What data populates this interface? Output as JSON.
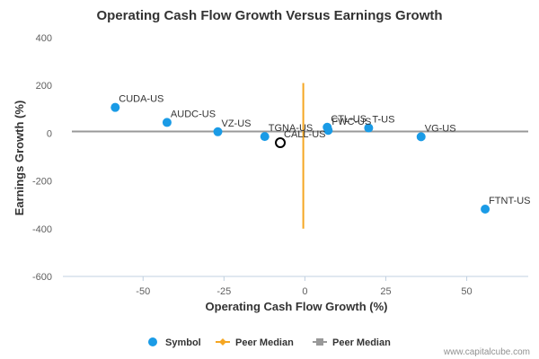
{
  "chart_data": {
    "type": "scatter",
    "title": "Operating Cash Flow Growth Versus Earnings Growth",
    "xlabel": "Operating Cash Flow Growth (%)",
    "ylabel": "Earnings Growth (%)",
    "xlim": [
      -72,
      69
    ],
    "ylim": [
      -600,
      400
    ],
    "xticks": [
      -50,
      -25,
      0,
      25,
      50
    ],
    "yticks": [
      400,
      200,
      0,
      -200,
      -400,
      -600
    ],
    "grid": false,
    "legend_position": "bottom",
    "series": [
      {
        "name": "Symbol",
        "color": "#1a9be6",
        "points": [
          {
            "label": "CUDA-US",
            "x": -58.6,
            "y": 108
          },
          {
            "label": "AUDC-US",
            "x": -42.6,
            "y": 45
          },
          {
            "label": "VZ-US",
            "x": -26.9,
            "y": 6
          },
          {
            "label": "TGNA-US",
            "x": -12.4,
            "y": -14
          },
          {
            "label": "CTL-US",
            "x": 6.9,
            "y": 25
          },
          {
            "label": "FWC-US",
            "x": 7.2,
            "y": 12
          },
          {
            "label": "T-US",
            "x": 19.7,
            "y": 22
          },
          {
            "label": "VG-US",
            "x": 35.9,
            "y": -15
          },
          {
            "label": "FTNT-US",
            "x": 55.7,
            "y": -318
          }
        ]
      },
      {
        "name": "CALL-US",
        "color": "#000000",
        "points": [
          {
            "label": "CALL-US",
            "x": -7.6,
            "y": -40
          }
        ]
      }
    ],
    "peer_median": {
      "x": -0.5,
      "y": 7,
      "x_line_range": [
        -400,
        210
      ],
      "vertical_color": "#f5a623",
      "horizontal_color": "#999999"
    },
    "legend": [
      {
        "label": "Symbol",
        "symbol": "circle",
        "color": "#1a9be6"
      },
      {
        "label": "Peer Median",
        "symbol": "diamond-line",
        "color": "#f5a623"
      },
      {
        "label": "Peer Median",
        "symbol": "square-line",
        "color": "#999999"
      }
    ],
    "source": "www.capitalcube.com"
  }
}
